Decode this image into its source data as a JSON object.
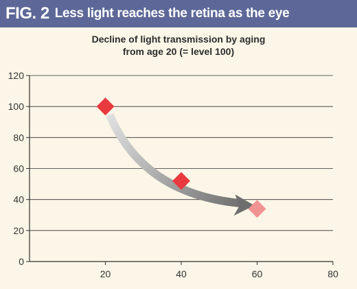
{
  "header": {
    "fig_label": "FIG. 2",
    "fig_title": "Less light reaches the retina as the eye"
  },
  "colors": {
    "header_bg": "#5d6898",
    "background": "#fbf6e7",
    "marker": "#e83a3f",
    "marker_light": "#f29393",
    "arrow_start": "#e6e6e6",
    "arrow_end": "#6e6e6e"
  },
  "chart_data": {
    "type": "scatter",
    "title_lines": [
      "Decline of light transmission by aging",
      "from age 20 (= level 100)"
    ],
    "xlabel": "",
    "ylabel": "",
    "xlim": [
      0,
      80
    ],
    "ylim": [
      0,
      120
    ],
    "x_ticks": [
      20,
      40,
      60,
      80
    ],
    "y_ticks": [
      0,
      20,
      40,
      60,
      80,
      100,
      120
    ],
    "grid": "horizontal",
    "points": [
      {
        "x": 20,
        "y": 100
      },
      {
        "x": 40,
        "y": 52
      },
      {
        "x": 60,
        "y": 34
      }
    ],
    "trend_arrow": true
  }
}
